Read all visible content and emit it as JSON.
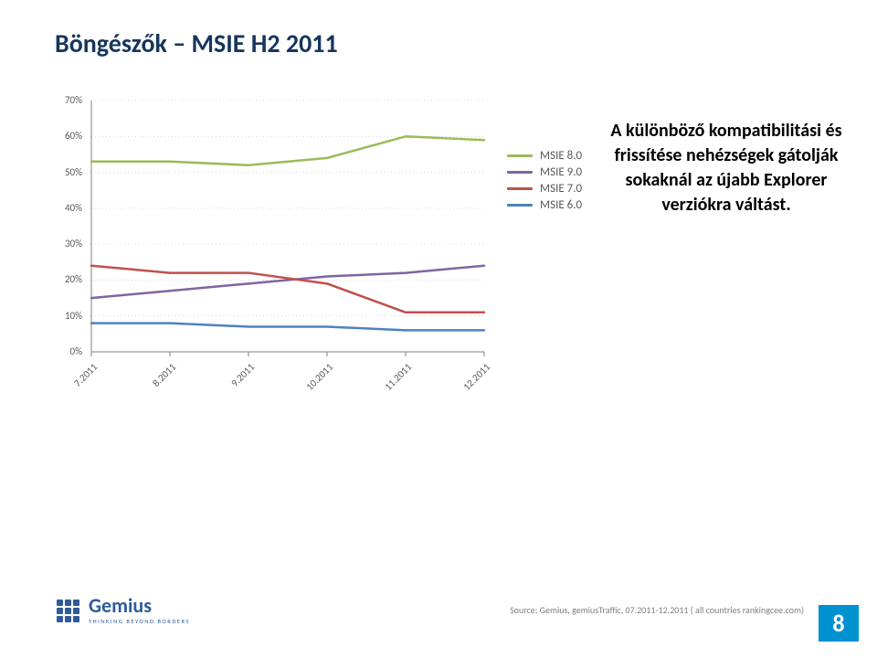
{
  "title": "Böngészők – MSIE H2 2011",
  "side_text": "A különböző kompatibilitási és frissítése nehézségek gátolják sokaknál az újabb Explorer verziókra váltást.",
  "chart": {
    "type": "line",
    "x_categories": [
      "7.2011",
      "8.2011",
      "9.2011",
      "10.2011",
      "11.2011",
      "12.2011"
    ],
    "y_ticks": [
      "0%",
      "10%",
      "20%",
      "30%",
      "40%",
      "50%",
      "60%",
      "70%"
    ],
    "ylim": [
      0,
      70
    ],
    "ytick_step": 10,
    "plot_area_bg": "#ffffff",
    "grid_color": "#d9d9d9",
    "grid_dash": "1,3",
    "axis_color": "#808080",
    "label_color": "#595959",
    "label_fontsize": 11,
    "line_width": 2.5,
    "series": [
      {
        "name": "MSIE 8.0",
        "color": "#9bbb59",
        "values": [
          53,
          53,
          52,
          54,
          60,
          59
        ]
      },
      {
        "name": "MSIE 9.0",
        "color": "#8064a2",
        "values": [
          15,
          17,
          19,
          21,
          22,
          24
        ]
      },
      {
        "name": "MSIE 7.0",
        "color": "#c0504d",
        "values": [
          24,
          22,
          22,
          19,
          11,
          11
        ]
      },
      {
        "name": "MSIE 6.0",
        "color": "#4f81bd",
        "values": [
          8,
          8,
          7,
          7,
          6,
          6
        ]
      }
    ]
  },
  "logo": {
    "name": "Gemius",
    "tagline": "THINKING BEYOND BORDERS",
    "color": "#2f5b9a"
  },
  "source": "Source: Gemius, gemiusTraffic, 07.2011-12.2011 ( all countries  rankingcee.com)",
  "page_number": "8",
  "page_number_bg": "#0091d0"
}
